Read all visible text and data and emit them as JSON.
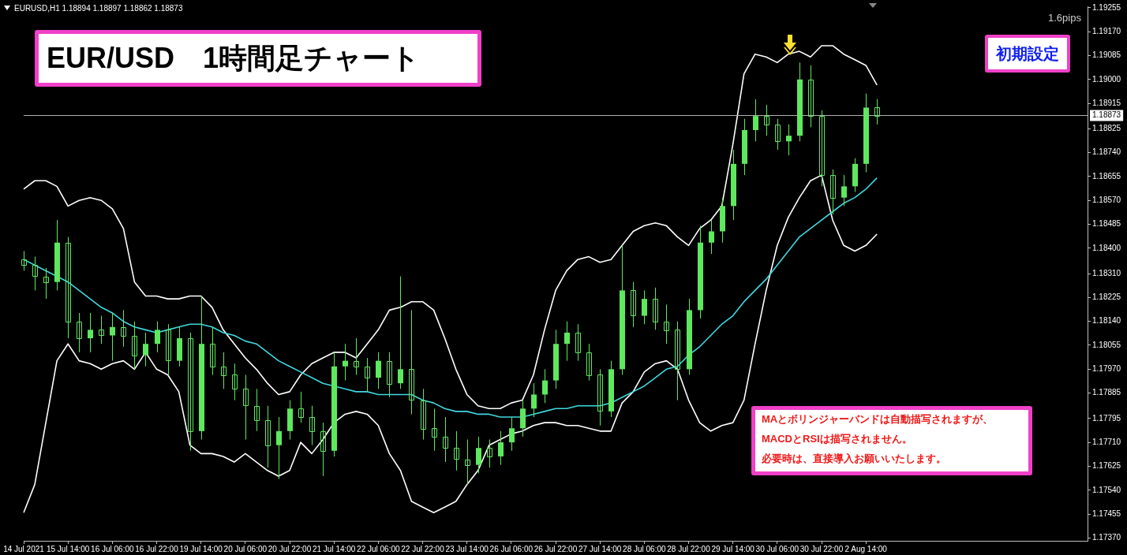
{
  "chart_data": {
    "type": "candlestick",
    "title": "EUR/USD　1時間足チャート",
    "color": "#5ee85e",
    "categories": [
      "14 Jul 2021",
      null,
      null,
      null,
      "15 Jul 14:00",
      null,
      null,
      null,
      "16 Jul 06:00",
      null,
      null,
      null,
      "16 Jul 22:00",
      null,
      null,
      null,
      "19 Jul 14:00",
      null,
      null,
      null,
      "20 Jul 06:00",
      null,
      null,
      null,
      "20 Jul 22:00",
      null,
      null,
      null,
      "21 Jul 14:00",
      null,
      null,
      null,
      "22 Jul 06:00",
      null,
      null,
      null,
      "22 Jul 22:00",
      null,
      null,
      null,
      "23 Jul 14:00",
      null,
      null,
      null,
      "26 Jul 06:00",
      null,
      null,
      null,
      "26 Jul 22:00",
      null,
      null,
      null,
      "27 Jul 14:00",
      null,
      null,
      null,
      "28 Jul 06:00",
      null,
      null,
      null,
      "28 Jul 22:00",
      null,
      null,
      null,
      "29 Jul 14:00",
      null,
      null,
      null,
      "30 Jul 06:00",
      null,
      null,
      null,
      "30 Jul 22:00",
      null,
      null,
      null,
      "2 Aug 14:00",
      null,
      null,
      null,
      null,
      null,
      null,
      null,
      null,
      null,
      null,
      null,
      null,
      null,
      null,
      null,
      null,
      null,
      null,
      null,
      null
    ],
    "ohlc": [
      [
        1.1836,
        1.1839,
        1.1832,
        1.1834
      ],
      [
        1.1834,
        1.1837,
        1.1825,
        1.183
      ],
      [
        1.183,
        1.1833,
        1.1822,
        1.1828
      ],
      [
        1.1828,
        1.185,
        1.1825,
        1.1842
      ],
      [
        1.1842,
        1.1844,
        1.1808,
        1.1814
      ],
      [
        1.1814,
        1.1817,
        1.1803,
        1.1808
      ],
      [
        1.1808,
        1.1817,
        1.1803,
        1.1811
      ],
      [
        1.1811,
        1.1816,
        1.1806,
        1.1809
      ],
      [
        1.1809,
        1.1817,
        1.18,
        1.1812
      ],
      [
        1.1812,
        1.1818,
        1.1805,
        1.1809
      ],
      [
        1.1809,
        1.1814,
        1.1797,
        1.1802
      ],
      [
        1.1802,
        1.181,
        1.1798,
        1.1806
      ],
      [
        1.1806,
        1.1814,
        1.1803,
        1.1811
      ],
      [
        1.1811,
        1.1813,
        1.1795,
        1.18
      ],
      [
        1.18,
        1.1812,
        1.1798,
        1.1808
      ],
      [
        1.1808,
        1.181,
        1.1768,
        1.1775
      ],
      [
        1.1775,
        1.1823,
        1.1772,
        1.1806
      ],
      [
        1.1806,
        1.1812,
        1.1795,
        1.1798
      ],
      [
        1.1798,
        1.1803,
        1.179,
        1.1795
      ],
      [
        1.1795,
        1.1799,
        1.1786,
        1.179
      ],
      [
        1.179,
        1.1795,
        1.1772,
        1.1784
      ],
      [
        1.1784,
        1.179,
        1.1775,
        1.1779
      ],
      [
        1.1779,
        1.1784,
        1.1762,
        1.177
      ],
      [
        1.177,
        1.178,
        1.1758,
        1.1775
      ],
      [
        1.1775,
        1.1786,
        1.1772,
        1.1783
      ],
      [
        1.1783,
        1.1789,
        1.1778,
        1.178
      ],
      [
        1.178,
        1.1784,
        1.177,
        1.1775
      ],
      [
        1.1775,
        1.1778,
        1.1759,
        1.1768
      ],
      [
        1.1768,
        1.1803,
        1.1766,
        1.1798
      ],
      [
        1.1798,
        1.1806,
        1.1793,
        1.18
      ],
      [
        1.18,
        1.1808,
        1.1795,
        1.1798
      ],
      [
        1.1798,
        1.1801,
        1.1789,
        1.1794
      ],
      [
        1.1794,
        1.1803,
        1.179,
        1.18
      ],
      [
        1.18,
        1.1803,
        1.1787,
        1.1792
      ],
      [
        1.1792,
        1.183,
        1.179,
        1.1797
      ],
      [
        1.1797,
        1.1818,
        1.1781,
        1.1786
      ],
      [
        1.1786,
        1.179,
        1.1772,
        1.1776
      ],
      [
        1.1776,
        1.1783,
        1.1768,
        1.1773
      ],
      [
        1.1773,
        1.178,
        1.1764,
        1.1769
      ],
      [
        1.1769,
        1.1775,
        1.1761,
        1.1765
      ],
      [
        1.1765,
        1.1772,
        1.1756,
        1.1763
      ],
      [
        1.1763,
        1.1773,
        1.176,
        1.1769
      ],
      [
        1.1769,
        1.1772,
        1.1762,
        1.1766
      ],
      [
        1.1766,
        1.1775,
        1.1763,
        1.1771
      ],
      [
        1.1771,
        1.178,
        1.1768,
        1.1776
      ],
      [
        1.1776,
        1.1786,
        1.1773,
        1.1783
      ],
      [
        1.1783,
        1.1792,
        1.178,
        1.1788
      ],
      [
        1.1788,
        1.1797,
        1.1785,
        1.1793
      ],
      [
        1.1793,
        1.1811,
        1.179,
        1.1806
      ],
      [
        1.1806,
        1.1814,
        1.18,
        1.181
      ],
      [
        1.181,
        1.1813,
        1.18,
        1.1803
      ],
      [
        1.1803,
        1.1806,
        1.1793,
        1.1795
      ],
      [
        1.1795,
        1.1797,
        1.1777,
        1.1782
      ],
      [
        1.1782,
        1.18,
        1.178,
        1.1797
      ],
      [
        1.1797,
        1.1841,
        1.1795,
        1.1825
      ],
      [
        1.1825,
        1.1828,
        1.1812,
        1.1816
      ],
      [
        1.1816,
        1.1825,
        1.1813,
        1.1822
      ],
      [
        1.1822,
        1.1826,
        1.1811,
        1.1814
      ],
      [
        1.1814,
        1.182,
        1.1806,
        1.1811
      ],
      [
        1.1811,
        1.1814,
        1.1786,
        1.1797
      ],
      [
        1.1797,
        1.1822,
        1.1795,
        1.1818
      ],
      [
        1.1818,
        1.1848,
        1.1815,
        1.1842
      ],
      [
        1.1842,
        1.185,
        1.1838,
        1.1846
      ],
      [
        1.1846,
        1.1858,
        1.1842,
        1.1855
      ],
      [
        1.1855,
        1.1875,
        1.185,
        1.187
      ],
      [
        1.187,
        1.1886,
        1.1866,
        1.1882
      ],
      [
        1.1882,
        1.1893,
        1.1878,
        1.1887
      ],
      [
        1.1887,
        1.1891,
        1.188,
        1.1884
      ],
      [
        1.1884,
        1.1886,
        1.1875,
        1.1878
      ],
      [
        1.1878,
        1.1884,
        1.1873,
        1.188
      ],
      [
        1.188,
        1.1906,
        1.1878,
        1.19
      ],
      [
        1.19,
        1.1905,
        1.1883,
        1.1887
      ],
      [
        1.1887,
        1.1889,
        1.1862,
        1.1866
      ],
      [
        1.1866,
        1.1868,
        1.1852,
        1.1858
      ],
      [
        1.1858,
        1.1866,
        1.1855,
        1.1862
      ],
      [
        1.1862,
        1.1872,
        1.186,
        1.187
      ],
      [
        1.187,
        1.1895,
        1.1867,
        1.189
      ],
      [
        1.189,
        1.1893,
        1.1884,
        1.1887
      ],
      null,
      null,
      null,
      null,
      null,
      null,
      null,
      null,
      null,
      null,
      null,
      null,
      null,
      null,
      null,
      null,
      null,
      null,
      null
    ],
    "series": [
      {
        "type": "line",
        "color": "#40d8e0",
        "values": [
          1.1836,
          1.1834,
          1.1832,
          1.183,
          1.1828,
          1.1825,
          1.1822,
          1.1819,
          1.1817,
          1.1814,
          1.1812,
          1.1811,
          1.181,
          1.1811,
          1.1812,
          1.1813,
          1.1813,
          1.1812,
          1.181,
          1.1809,
          1.1807,
          1.1806,
          1.1803,
          1.18,
          1.1798,
          1.1796,
          1.1794,
          1.1792,
          1.1791,
          1.179,
          1.1789,
          1.1789,
          1.1788,
          1.1788,
          1.1788,
          1.1788,
          1.1786,
          1.1785,
          1.1783,
          1.1782,
          1.1782,
          1.1781,
          1.1781,
          1.178,
          1.178,
          1.178,
          1.1781,
          1.1782,
          1.1783,
          1.1783,
          1.1784,
          1.1784,
          1.1784,
          1.1785,
          1.1787,
          1.1789,
          1.1791,
          1.1794,
          1.1797,
          1.1798,
          1.1802,
          1.1805,
          1.1809,
          1.1813,
          1.1816,
          1.1821,
          1.1825,
          1.1829,
          1.1834,
          1.1839,
          1.1844,
          1.1847,
          1.185,
          1.1853,
          1.1856,
          1.1858,
          1.1861,
          1.1865,
          null,
          null,
          null,
          null,
          null,
          null,
          null,
          null,
          null,
          null,
          null,
          null,
          null,
          null,
          null,
          null,
          null,
          null,
          null
        ]
      },
      {
        "type": "line",
        "color": "#ffffff",
        "values": [
          1.1861,
          1.1864,
          1.1864,
          1.1862,
          1.1855,
          1.1857,
          1.1858,
          1.1857,
          1.1854,
          1.1847,
          1.1828,
          1.1823,
          1.1823,
          1.1822,
          1.1822,
          1.1823,
          1.1823,
          1.1819,
          1.1811,
          1.1806,
          1.1801,
          1.1797,
          1.1792,
          1.1788,
          1.1789,
          1.1795,
          1.1799,
          1.1801,
          1.1803,
          1.1803,
          1.1801,
          1.1806,
          1.1811,
          1.1818,
          1.1819,
          1.1821,
          1.1821,
          1.1818,
          1.1808,
          1.1797,
          1.1788,
          1.1784,
          1.1783,
          1.1783,
          1.1785,
          1.1786,
          1.1795,
          1.1811,
          1.1825,
          1.1832,
          1.1836,
          1.1837,
          1.1835,
          1.1836,
          1.1841,
          1.1846,
          1.1848,
          1.1849,
          1.1848,
          1.1844,
          1.1841,
          1.1847,
          1.185,
          1.1855,
          1.1877,
          1.1902,
          1.1909,
          1.1908,
          1.1906,
          1.1909,
          1.191,
          1.1908,
          1.1912,
          1.1912,
          1.1909,
          1.1907,
          1.1905,
          1.1898,
          null,
          null,
          null,
          null,
          null,
          null,
          null,
          null,
          null,
          null,
          null,
          null,
          null,
          null,
          null,
          null,
          null,
          null,
          null
        ]
      },
      {
        "type": "line",
        "color": "#ffffff",
        "values": [
          1.1746,
          1.1756,
          1.1778,
          1.18,
          1.1806,
          1.18,
          1.1799,
          1.1797,
          1.1799,
          1.18,
          1.1797,
          1.1803,
          1.1797,
          1.1795,
          1.1789,
          1.177,
          1.1767,
          1.1767,
          1.1766,
          1.1764,
          1.1767,
          1.1764,
          1.1761,
          1.1759,
          1.1761,
          1.1771,
          1.1767,
          1.1772,
          1.1778,
          1.1781,
          1.1782,
          1.1781,
          1.1777,
          1.1767,
          1.1761,
          1.175,
          1.1748,
          1.1746,
          1.1748,
          1.175,
          1.1756,
          1.1761,
          1.177,
          1.1772,
          1.1774,
          1.1775,
          1.1777,
          1.1778,
          1.1778,
          1.1777,
          1.1777,
          1.1776,
          1.1775,
          1.1775,
          1.1785,
          1.1789,
          1.1796,
          1.1799,
          1.18,
          1.1797,
          1.1786,
          1.1778,
          1.1775,
          1.1777,
          1.1778,
          1.1786,
          1.1806,
          1.1825,
          1.1841,
          1.1851,
          1.1858,
          1.1864,
          1.1866,
          1.185,
          1.1841,
          1.1839,
          1.1841,
          1.1845,
          null,
          null,
          null,
          null,
          null,
          null,
          null,
          null,
          null,
          null,
          null,
          null,
          null,
          null,
          null,
          null,
          null,
          null,
          null
        ]
      }
    ],
    "ylim": [
      1.1736,
      1.1926
    ],
    "yticks": [
      1.19255,
      {
        "value": 1.1917,
        "label": "1.19170"
      },
      1.19085,
      {
        "value": 1.19,
        "label": "1.19000"
      },
      1.18915,
      1.18825,
      {
        "value": 1.1874,
        "label": "1.18740"
      },
      1.18655,
      {
        "value": 1.1857,
        "label": "1.18570"
      },
      1.18485,
      {
        "value": 1.184,
        "label": "1.18400"
      },
      {
        "value": 1.1831,
        "label": "1.18310"
      },
      1.18225,
      {
        "value": 1.1814,
        "label": "1.18140"
      },
      1.18055,
      {
        "value": 1.1797,
        "label": "1.17970"
      },
      1.17885,
      1.17795,
      {
        "value": 1.1771,
        "label": "1.17710"
      },
      1.17625,
      {
        "value": 1.1754,
        "label": "1.17540"
      },
      1.17455,
      {
        "value": 1.1737,
        "label": "1.17370"
      }
    ],
    "ref_lines": [
      {
        "axis": "y",
        "value": 1.18873,
        "label": "1.18873",
        "color": "#b0b0b0"
      }
    ],
    "annotations": [
      "EURUSD,H1  1.18894 1.18897 1.18862 1.18873",
      "1.6pips",
      "初期設定",
      "MAとボリンジャーバンドは自動描写されますが、",
      "MACDとRSIは描写されません。",
      "必要時は、直接導入お願いいたします。"
    ],
    "grid": false,
    "legend": false,
    "line_style": "solid",
    "marker": "none"
  }
}
